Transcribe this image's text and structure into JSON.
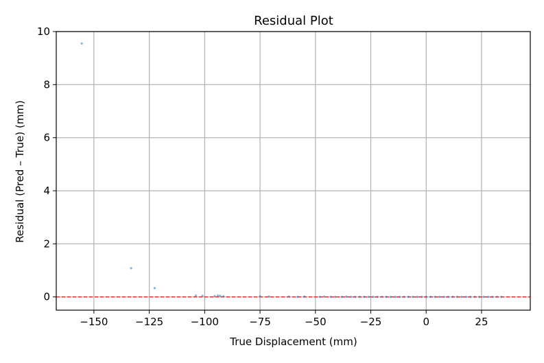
{
  "chart_data": {
    "type": "scatter",
    "title": "Residual Plot",
    "xlabel": "True Displacement (mm)",
    "ylabel": "Residual (Pred – True) (mm)",
    "xlim": [
      -167,
      47
    ],
    "ylim": [
      -0.5,
      10
    ],
    "xticks": [
      -150,
      -125,
      -100,
      -75,
      -50,
      -25,
      0,
      25
    ],
    "xtick_labels": [
      "−150",
      "−125",
      "−100",
      "−75",
      "−50",
      "−25",
      "0",
      "25"
    ],
    "yticks": [
      0,
      2,
      4,
      6,
      8,
      10
    ],
    "ytick_labels": [
      "0",
      "2",
      "4",
      "6",
      "8",
      "10"
    ],
    "grid": true,
    "reference_line": {
      "y": 0,
      "color": "#d62728",
      "style": "dashed"
    },
    "point_color": "#1f77b4",
    "points": [
      [
        -155.5,
        9.55
      ],
      [
        -133.2,
        1.08
      ],
      [
        -122.6,
        0.33
      ],
      [
        -104.0,
        0.05
      ],
      [
        -101.0,
        0.04
      ],
      [
        -95.5,
        0.03
      ],
      [
        -94.0,
        0.05
      ],
      [
        -93.0,
        0.04
      ],
      [
        -91.5,
        0.02
      ],
      [
        -75.0,
        0.02
      ],
      [
        -71.0,
        0.01
      ],
      [
        -62.0,
        0.01
      ],
      [
        -58.0,
        0.0
      ],
      [
        -55.0,
        0.01
      ],
      [
        -48.0,
        0.0
      ],
      [
        -46.0,
        0.01
      ],
      [
        -43.0,
        0.0
      ],
      [
        -41.0,
        0.0
      ],
      [
        -38.0,
        0.0
      ],
      [
        -36.0,
        0.01
      ],
      [
        -34.0,
        0.0
      ],
      [
        -32.0,
        0.0
      ],
      [
        -30.0,
        0.0
      ],
      [
        -28.0,
        0.0
      ],
      [
        -26.0,
        0.0
      ],
      [
        -24.0,
        0.0
      ],
      [
        -22.0,
        0.0
      ],
      [
        -20.0,
        0.0
      ],
      [
        -18.0,
        0.0
      ],
      [
        -16.0,
        0.0
      ],
      [
        -14.0,
        0.0
      ],
      [
        -12.0,
        0.0
      ],
      [
        -10.0,
        0.0
      ],
      [
        -8.0,
        0.0
      ],
      [
        -6.0,
        0.0
      ],
      [
        -4.0,
        0.0
      ],
      [
        -2.0,
        0.0
      ],
      [
        0.0,
        0.0
      ],
      [
        2.0,
        0.0
      ],
      [
        4.0,
        0.0
      ],
      [
        6.0,
        0.0
      ],
      [
        8.0,
        0.0
      ],
      [
        10.0,
        0.0
      ],
      [
        12.0,
        0.0
      ],
      [
        14.0,
        0.0
      ],
      [
        16.0,
        0.0
      ],
      [
        18.0,
        0.0
      ],
      [
        20.0,
        0.0
      ],
      [
        22.0,
        0.0
      ],
      [
        24.0,
        0.0
      ],
      [
        26.0,
        0.0
      ],
      [
        28.0,
        0.0
      ],
      [
        30.0,
        0.0
      ],
      [
        32.0,
        0.0
      ],
      [
        34.0,
        0.0
      ]
    ]
  }
}
